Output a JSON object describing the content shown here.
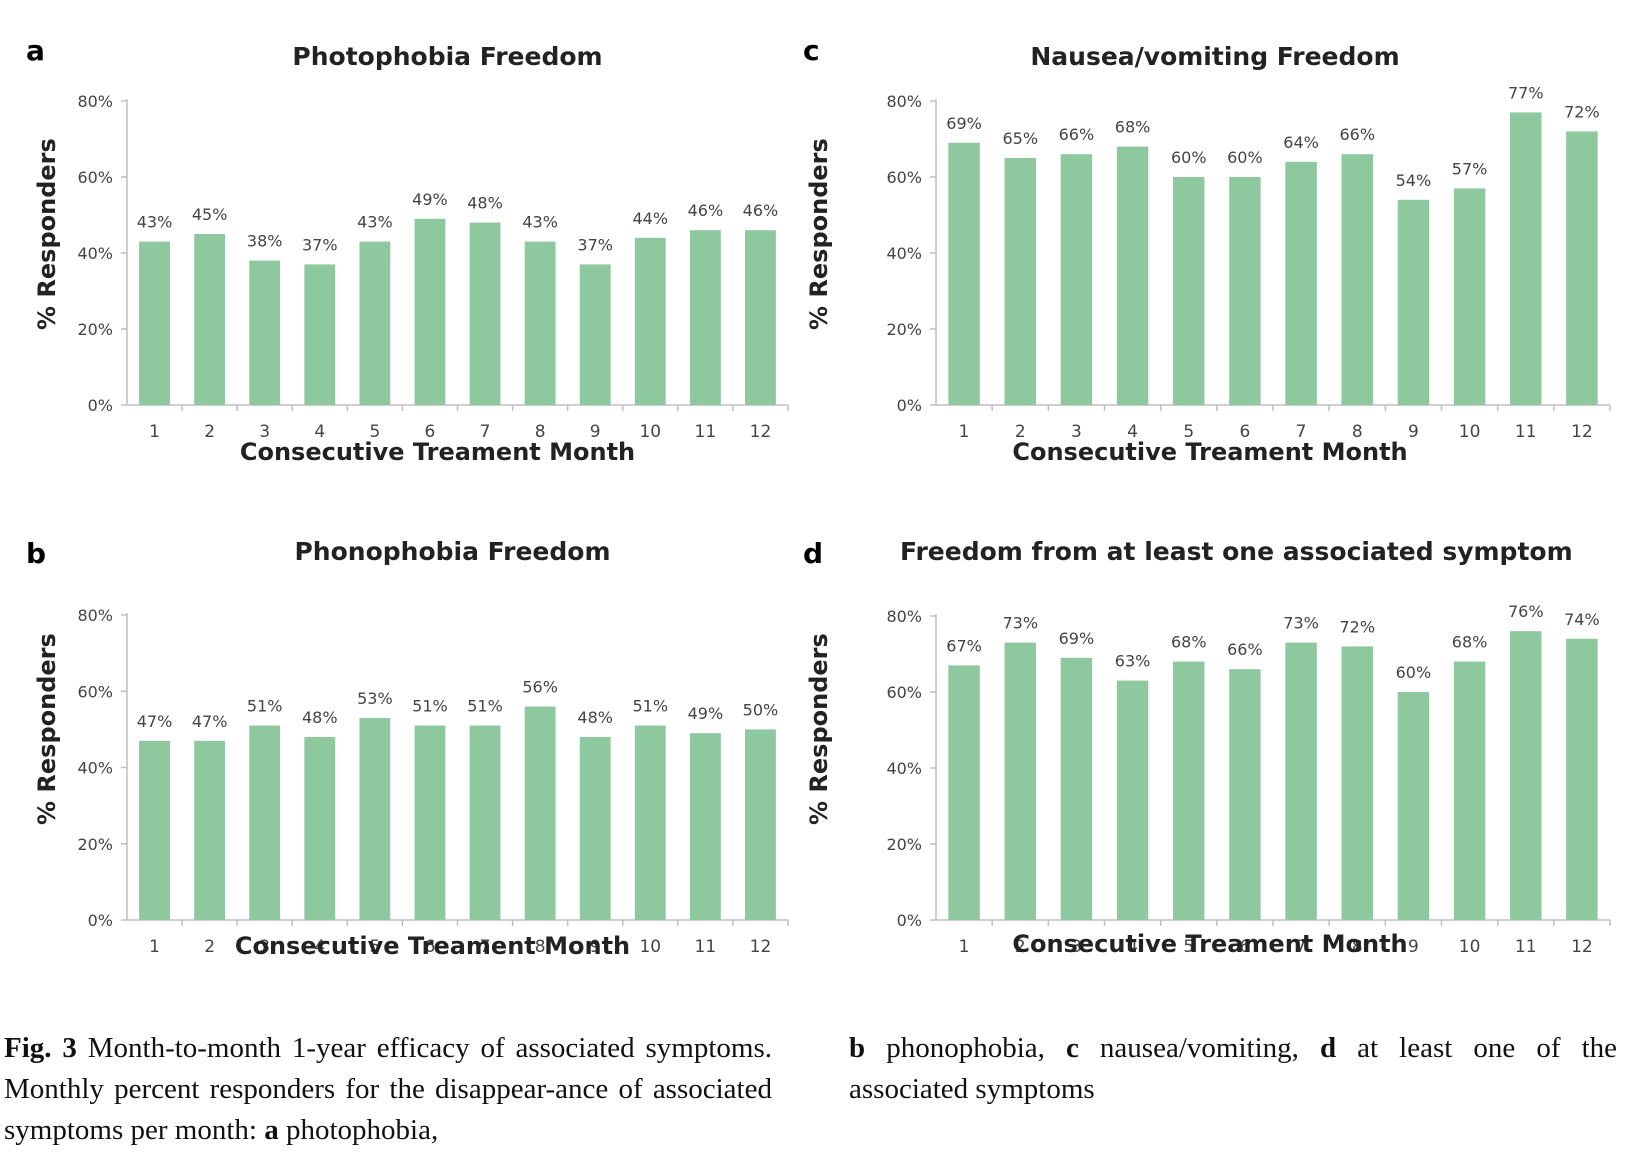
{
  "chart_data": [
    {
      "panel": "a",
      "type": "bar",
      "title": "Photophobia Freedom",
      "xlabel": "Consecutive Treament Month",
      "ylabel": "% Responders",
      "categories": [
        "1",
        "2",
        "3",
        "4",
        "5",
        "6",
        "7",
        "8",
        "9",
        "10",
        "11",
        "12"
      ],
      "values": [
        43,
        45,
        38,
        37,
        43,
        49,
        48,
        43,
        37,
        44,
        46,
        46
      ],
      "data_labels": [
        "43%",
        "45%",
        "38%",
        "37%",
        "43%",
        "49%",
        "48%",
        "43%",
        "37%",
        "44%",
        "46%",
        "46%"
      ],
      "ylim": [
        0,
        80
      ],
      "yticks": [
        "0%",
        "20%",
        "40%",
        "60%",
        "80%"
      ],
      "bar_color": "#8dc89f"
    },
    {
      "panel": "b",
      "type": "bar",
      "title": "Phonophobia Freedom",
      "xlabel": "Consecutive Treament Month",
      "ylabel": "% Responders",
      "categories": [
        "1",
        "2",
        "3",
        "4",
        "5",
        "6",
        "7",
        "8",
        "9",
        "10",
        "11",
        "12"
      ],
      "values": [
        47,
        47,
        51,
        48,
        53,
        51,
        51,
        56,
        48,
        51,
        49,
        50
      ],
      "data_labels": [
        "47%",
        "47%",
        "51%",
        "48%",
        "53%",
        "51%",
        "51%",
        "56%",
        "48%",
        "51%",
        "49%",
        "50%"
      ],
      "ylim": [
        0,
        80
      ],
      "yticks": [
        "0%",
        "20%",
        "40%",
        "60%",
        "80%"
      ],
      "bar_color": "#8dc89f"
    },
    {
      "panel": "c",
      "type": "bar",
      "title": "Nausea/vomiting Freedom",
      "xlabel": "Consecutive Treament Month",
      "ylabel": "% Responders",
      "categories": [
        "1",
        "2",
        "3",
        "4",
        "5",
        "6",
        "7",
        "8",
        "9",
        "10",
        "11",
        "12"
      ],
      "values": [
        69,
        65,
        66,
        68,
        60,
        60,
        64,
        66,
        54,
        57,
        77,
        72
      ],
      "data_labels": [
        "69%",
        "65%",
        "66%",
        "68%",
        "60%",
        "60%",
        "64%",
        "66%",
        "54%",
        "57%",
        "77%",
        "72%"
      ],
      "ylim": [
        0,
        80
      ],
      "yticks": [
        "0%",
        "20%",
        "40%",
        "60%",
        "80%"
      ],
      "bar_color": "#8dc89f"
    },
    {
      "panel": "d",
      "type": "bar",
      "title": "Freedom from at least one associated symptom",
      "xlabel": "Consecutive Treament Month",
      "ylabel": "% Responders",
      "categories": [
        "1",
        "2",
        "3",
        "4",
        "5",
        "6",
        "7",
        "8",
        "9",
        "10",
        "11",
        "12"
      ],
      "values": [
        67,
        73,
        69,
        63,
        68,
        66,
        73,
        72,
        60,
        68,
        76,
        74
      ],
      "data_labels": [
        "67%",
        "73%",
        "69%",
        "63%",
        "68%",
        "66%",
        "73%",
        "72%",
        "60%",
        "68%",
        "76%",
        "74%"
      ],
      "ylim": [
        0,
        80
      ],
      "yticks": [
        "0%",
        "20%",
        "40%",
        "60%",
        "80%"
      ],
      "bar_color": "#8dc89f"
    }
  ],
  "caption": {
    "fig_label": "Fig. 3",
    "left_text_1": " Month-to-month 1-year efficacy of associated symptoms. Monthly percent responders for the disappear-ance of associated symptoms per month: ",
    "a_label": "a",
    "a_text": " photophobia,",
    "b_label": "b",
    "b_text": " phonophobia, ",
    "c_label": "c",
    "c_text": " nausea/vomiting, ",
    "d_label": "d",
    "d_text": " at least one of the associated symptoms"
  }
}
